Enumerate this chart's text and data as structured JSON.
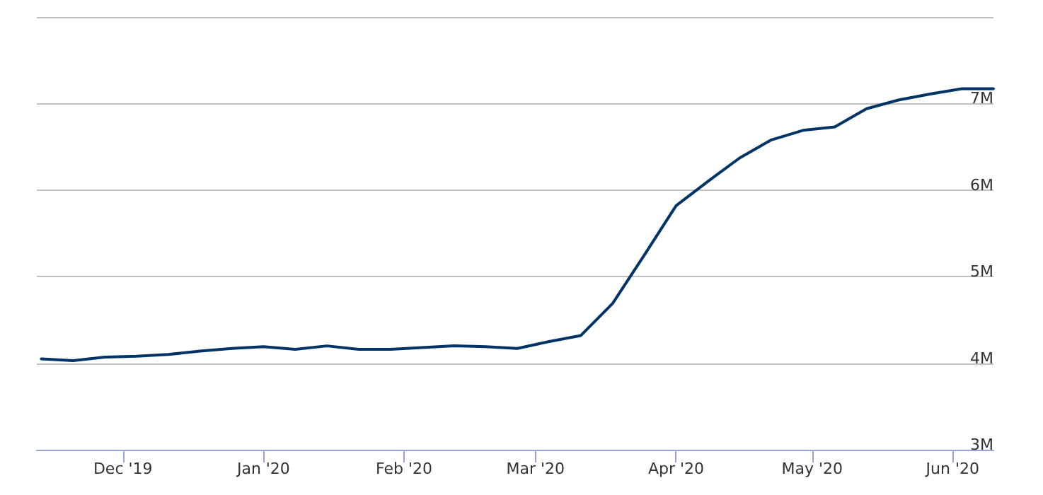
{
  "chart_data": {
    "type": "line",
    "x": [
      "2019-11-13",
      "2019-11-20",
      "2019-11-27",
      "2019-12-04",
      "2019-12-11",
      "2019-12-18",
      "2019-12-25",
      "2020-01-01",
      "2020-01-08",
      "2020-01-15",
      "2020-01-22",
      "2020-01-29",
      "2020-02-05",
      "2020-02-12",
      "2020-02-19",
      "2020-02-26",
      "2020-03-04",
      "2020-03-11",
      "2020-03-18",
      "2020-03-25",
      "2020-04-01",
      "2020-04-08",
      "2020-04-15",
      "2020-04-22",
      "2020-04-29",
      "2020-05-06",
      "2020-05-13",
      "2020-05-20",
      "2020-05-27",
      "2020-06-03",
      "2020-06-10"
    ],
    "series": [
      {
        "color": "#003366",
        "values": [
          4050000,
          4030000,
          4070000,
          4080000,
          4100000,
          4140000,
          4170000,
          4190000,
          4160000,
          4200000,
          4160000,
          4160000,
          4180000,
          4200000,
          4190000,
          4170000,
          4250000,
          4320000,
          4690000,
          5250000,
          5820000,
          6100000,
          6370000,
          6580000,
          6690000,
          6730000,
          6940000,
          7040000,
          7110000,
          7170000,
          7170000
        ]
      }
    ],
    "xlim": [
      "2019-11-12",
      "2020-06-10"
    ],
    "xticks": [
      {
        "value": "2019-12-01",
        "label": "Dec '19"
      },
      {
        "value": "2020-01-01",
        "label": "Jan '20"
      },
      {
        "value": "2020-02-01",
        "label": "Feb '20"
      },
      {
        "value": "2020-03-01",
        "label": "Mar '20"
      },
      {
        "value": "2020-04-01",
        "label": "Apr '20"
      },
      {
        "value": "2020-05-01",
        "label": "May '20"
      },
      {
        "value": "2020-06-01",
        "label": "Jun '20"
      }
    ],
    "ylim": [
      3000000,
      8000000
    ],
    "yticks": [
      {
        "value": 3000000,
        "label": "3M"
      },
      {
        "value": 4000000,
        "label": "4M"
      },
      {
        "value": 5000000,
        "label": "5M"
      },
      {
        "value": 6000000,
        "label": "6M"
      },
      {
        "value": 7000000,
        "label": "7M"
      },
      {
        "value": 8000000,
        "label": null
      }
    ],
    "grid": "y",
    "marker": "none",
    "line_style": "solid"
  }
}
